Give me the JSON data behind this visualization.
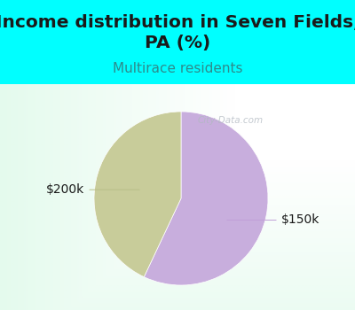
{
  "title": "Income distribution in Seven Fields,\nPA (%)",
  "subtitle": "Multirace residents",
  "fig_bg_color": "#00FFFF",
  "chart_bg_color": "#ffffff",
  "slices": [
    {
      "label": "$150k",
      "value": 57,
      "color": "#c8aedd"
    },
    {
      "label": "$200k",
      "value": 43,
      "color": "#c8cc9a"
    }
  ],
  "title_fontsize": 14.5,
  "subtitle_fontsize": 11,
  "subtitle_color": "#2e8b8b",
  "label_fontsize": 10,
  "watermark": "City-Data.com",
  "startangle": 90
}
